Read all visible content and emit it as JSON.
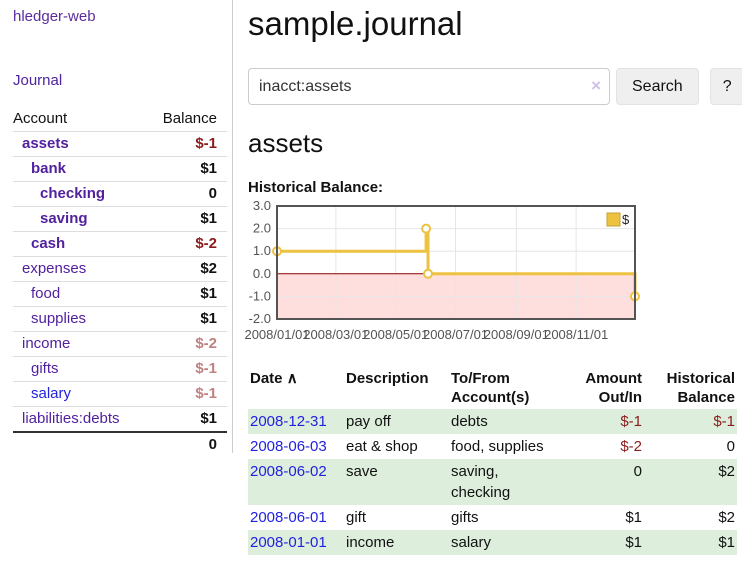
{
  "app": {
    "title": "hledger-web"
  },
  "colors": {
    "accent_purple": "#52219e",
    "link_blue": "#2222dd",
    "negative_strong": "#8b1c1c",
    "negative_soft": "#c08181",
    "row_green": "#ddeedd",
    "series_yellow": "#EDC240",
    "zero_line_red": "#8b0000",
    "chart_border_gray": "#545454"
  },
  "sidebar": {
    "journal_link": "Journal",
    "accounts_header": {
      "account": "Account",
      "balance": "Balance"
    },
    "accounts": [
      {
        "name": "assets",
        "balance": "$-1",
        "indent": 1,
        "bold": true,
        "neg": "strong"
      },
      {
        "name": "bank",
        "balance": "$1",
        "indent": 2,
        "bold": true
      },
      {
        "name": "checking",
        "balance": "0",
        "indent": 3,
        "bold": true
      },
      {
        "name": "saving",
        "balance": "$1",
        "indent": 3,
        "bold": true
      },
      {
        "name": "cash",
        "balance": "$-2",
        "indent": 2,
        "bold": true,
        "neg": "strong"
      },
      {
        "name": "expenses",
        "balance": "$2",
        "indent": 1
      },
      {
        "name": "food",
        "balance": "$1",
        "indent": 2
      },
      {
        "name": "supplies",
        "balance": "$1",
        "indent": 2
      },
      {
        "name": "income",
        "balance": "$-2",
        "indent": 1,
        "neg": "soft"
      },
      {
        "name": "gifts",
        "balance": "$-1",
        "indent": 2,
        "neg": "soft"
      },
      {
        "name": "salary",
        "balance": "$-1",
        "indent": 2,
        "neg": "soft",
        "blue": true
      },
      {
        "name": "liabilities:debts",
        "balance": "$1",
        "indent": 1
      }
    ],
    "total": "0"
  },
  "header": {
    "title": "sample.journal"
  },
  "search": {
    "query": "inacct:assets",
    "clear_icon": "×",
    "button": "Search",
    "help_button": "?"
  },
  "account_page": {
    "title": "assets",
    "chart_title": "Historical Balance:"
  },
  "chart_data": {
    "type": "line",
    "step": true,
    "title": "Historical Balance:",
    "series": [
      {
        "name": "$",
        "color": "#EDC240",
        "points": [
          [
            "2008/01/01",
            1
          ],
          [
            "2008/06/01",
            2
          ],
          [
            "2008/06/03",
            0
          ],
          [
            "2008/12/31",
            -1
          ]
        ]
      }
    ],
    "xlim": [
      "2008/01/01",
      "2008/12/31"
    ],
    "ylim": [
      -2,
      3
    ],
    "yticks": [
      3.0,
      2.0,
      1.0,
      0.0,
      -1.0,
      -2.0
    ],
    "xticks": [
      "2008/01/01",
      "2008/03/01",
      "2008/05/01",
      "2008/07/01",
      "2008/09/01",
      "2008/11/01"
    ],
    "negative_fill": "rgba(255,0,0,0.13)",
    "zero_line_color": "#8b0000",
    "grid": true,
    "legend_position": "top-right"
  },
  "register": {
    "header": {
      "date": "Date",
      "sort_icon": "∧",
      "description": "Description",
      "accounts_line1": "To/From",
      "accounts_line2": "Account(s)",
      "amount_line1": "Amount",
      "amount_line2": "Out/In",
      "balance_line1": "Historical",
      "balance_line2": "Balance"
    },
    "rows": [
      {
        "date": "2008-12-31",
        "description": "pay off",
        "accounts": "debts",
        "amount": "$-1",
        "balance": "$-1",
        "shade": true
      },
      {
        "date": "2008-06-03",
        "description": "eat & shop",
        "accounts": "food, supplies",
        "amount": "$-2",
        "balance": "0",
        "shade": false
      },
      {
        "date": "2008-06-02",
        "description": "save",
        "accounts": "saving, checking",
        "amount": "0",
        "balance": "$2",
        "shade": true
      },
      {
        "date": "2008-06-01",
        "description": "gift",
        "accounts": "gifts",
        "amount": "$1",
        "balance": "$2",
        "shade": false
      },
      {
        "date": "2008-01-01",
        "description": "income",
        "accounts": "salary",
        "amount": "$1",
        "balance": "$1",
        "shade": true
      }
    ]
  }
}
